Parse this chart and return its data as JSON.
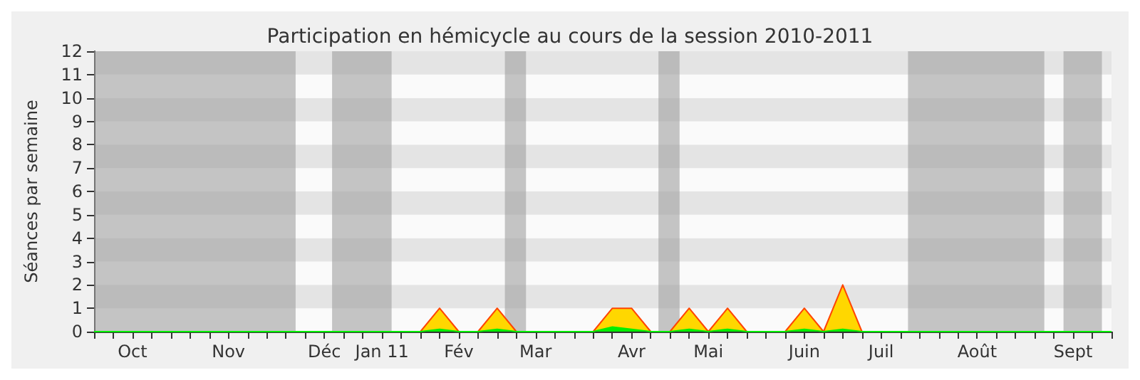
{
  "chart_data": {
    "type": "area",
    "title": "Participation en hémicycle au cours de la session 2010-2011",
    "ylabel": "Séances par semaine",
    "categories": [
      null,
      null,
      "Oct",
      null,
      null,
      null,
      null,
      "Nov",
      null,
      null,
      null,
      null,
      "Déc",
      null,
      null,
      "Jan 11",
      null,
      null,
      null,
      "Fév",
      null,
      null,
      null,
      "Mar",
      null,
      null,
      null,
      null,
      "Avr",
      null,
      null,
      null,
      "Mai",
      null,
      null,
      null,
      null,
      "Juin",
      null,
      null,
      null,
      "Juil",
      null,
      null,
      null,
      null,
      "Août",
      null,
      null,
      null,
      null,
      "Sept",
      null,
      null
    ],
    "series": [
      {
        "color": "#ffd700",
        "values": [
          0,
          0,
          0,
          0,
          0,
          0,
          0,
          0,
          0,
          0,
          0,
          0,
          0,
          0,
          0,
          0,
          0,
          0,
          1,
          0,
          0,
          1,
          0,
          0,
          0,
          0,
          0,
          1,
          1,
          0,
          0,
          1,
          0,
          1,
          0,
          0,
          0,
          1,
          0,
          2,
          0,
          0,
          0,
          0,
          0,
          0,
          0,
          0,
          0,
          0,
          0,
          0,
          0,
          0
        ]
      },
      {
        "color": "#00ee00",
        "values": [
          0,
          0,
          0,
          0,
          0,
          0,
          0,
          0,
          0,
          0,
          0,
          0,
          0,
          0,
          0,
          0,
          0,
          0,
          0.1,
          0,
          0,
          0.1,
          0,
          0,
          0,
          0,
          0,
          0.2,
          0.1,
          0,
          0,
          0.1,
          0,
          0.1,
          0,
          0,
          0,
          0.1,
          0,
          0.1,
          0,
          0,
          0,
          0,
          0,
          0,
          0,
          0,
          0,
          0,
          0,
          0,
          0,
          0
        ]
      }
    ],
    "ylim": [
      0,
      12
    ],
    "yticks": [
      0,
      1,
      2,
      3,
      4,
      5,
      6,
      7,
      8,
      9,
      10,
      11,
      12
    ]
  }
}
